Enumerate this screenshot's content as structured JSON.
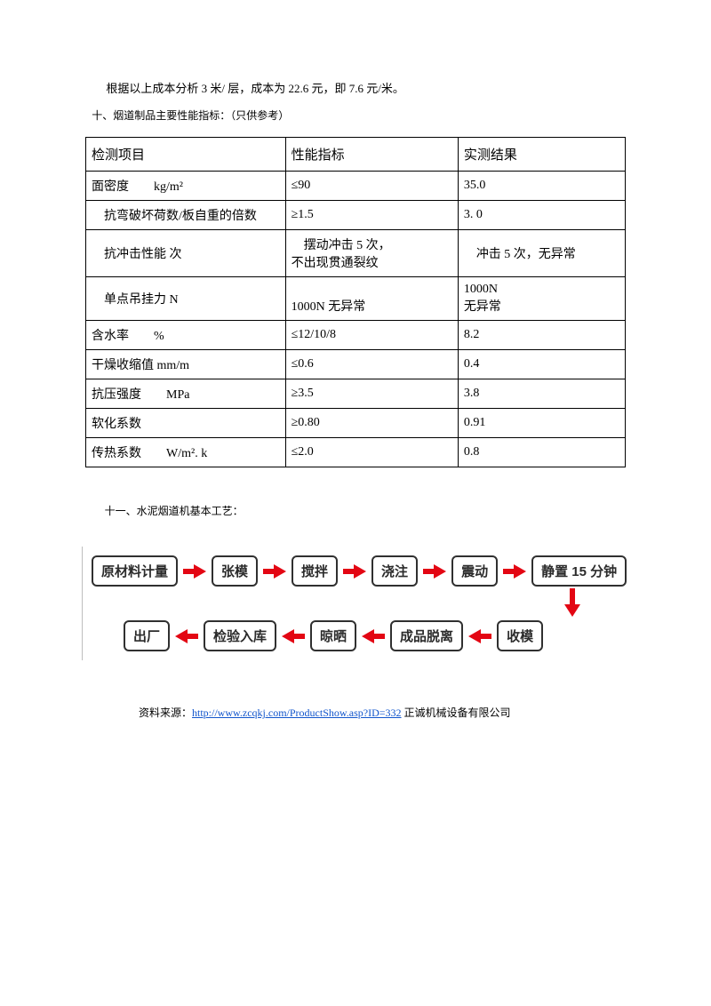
{
  "intro_paragraph": "根据以上成本分析 3 米/ 层，成本为 22.6 元，即 7.6 元/米。",
  "section10_title": "十、烟道制品主要性能指标：（只供参考）",
  "table": {
    "headers": [
      "检测项目",
      "性能指标",
      "实测结果"
    ],
    "rows": [
      {
        "c1": "面密度  kg/m²",
        "c2": "≤90",
        "c3": "35.0"
      },
      {
        "c1": " 抗弯破坏荷数/板自重的倍数",
        "c2": "≥1.5",
        "c3": "3. 0"
      },
      {
        "c1": " 抗冲击性能 次",
        "c2": " 摆动冲击 5 次，\n不出现贯通裂纹",
        "c3": " 冲击 5 次，无异常"
      },
      {
        "c1": " 单点吊挂力 N",
        "c2": "\n1000N 无异常",
        "c3": "1000N\n无异常"
      },
      {
        "c1": "含水率  %",
        "c2": "≤12/10/8",
        "c3": "8.2"
      },
      {
        "c1": "干燥收缩值 mm/m",
        "c2": "≤0.6",
        "c3": "0.4"
      },
      {
        "c1": "抗压强度  MPa",
        "c2": "≥3.5",
        "c3": "3.8"
      },
      {
        "c1": "软化系数",
        "c2": "≥0.80",
        "c3": "0.91"
      },
      {
        "c1": "传热系数  W/m². k",
        "c2": "≤2.0",
        "c3": "0.8"
      }
    ]
  },
  "section11_title": "十一、水泥烟道机基本工艺：",
  "flow": {
    "row1": [
      "原材料计量",
      "张模",
      "搅拌",
      "浇注",
      "震动",
      "静置 15 分钟"
    ],
    "row2": [
      "出厂",
      "检验入库",
      "晾晒",
      "成品脱离",
      "收模"
    ],
    "arrow_color": "#e30613",
    "node_border": "#303030",
    "node_bg": "#ffffff"
  },
  "source": {
    "prefix": "资料来源：",
    "url": "http://www.zcqkj.com/ProductShow.asp?ID=332",
    "suffix": " 正诚机械设备有限公司"
  }
}
